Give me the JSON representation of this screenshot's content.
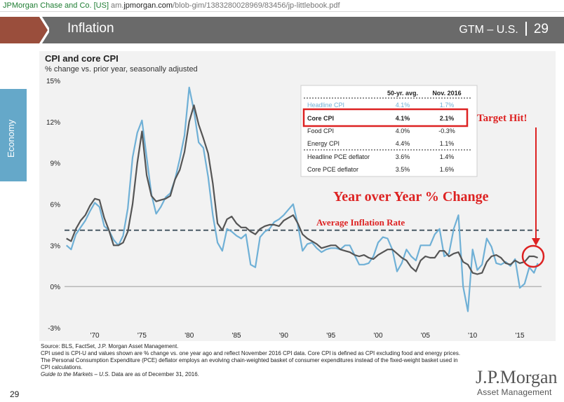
{
  "browser": {
    "site": "JPMorgan Chase and Co. [US]",
    "url_prefix": "am.",
    "url_domain": "jpmorgan.com",
    "url_path": "/blob-gim/1383280028969/83456/jp-littlebook.pdf"
  },
  "header": {
    "title": "Inflation",
    "section": "GTM – U.S.",
    "page": "29"
  },
  "side_tab": "Economy",
  "chart_title": "CPI and core CPI",
  "chart_subtitle": "% change vs. prior year, seasonally adjusted",
  "table": {
    "col1": "50-yr. avg.",
    "col2": "Nov. 2016",
    "rows": [
      {
        "label": "Headline CPI",
        "avg": "4.1%",
        "nov": "1.7%"
      },
      {
        "label": "Core CPI",
        "avg": "4.1%",
        "nov": "2.1%"
      },
      {
        "label": "Food CPI",
        "avg": "4.0%",
        "nov": "-0.3%"
      },
      {
        "label": "Energy CPI",
        "avg": "4.4%",
        "nov": "1.1%"
      },
      {
        "label": "Headline PCE deflator",
        "avg": "3.6%",
        "nov": "1.4%"
      },
      {
        "label": "Core PCE deflator",
        "avg": "3.5%",
        "nov": "1.6%"
      }
    ]
  },
  "annotations": {
    "target_hit": "Target Hit!",
    "yoy": "Year over Year % Change",
    "avg_rate": "Average Inflation  Rate"
  },
  "footnotes": {
    "source": "Source: BLS, FactSet, J.P. Morgan Asset Management.",
    "note": "CPI used is CPI-U and values shown are % change vs. one year ago and reflect November 2016 CPI data. Core CPI is defined as CPI excluding food and energy prices. The Personal Consumption Expenditure (PCE) deflator employs an evolving chain-weighted basket of consumer expenditures instead of the fixed-weight basket used in CPI calculations.",
    "guide_italic": "Guide to the Markets – U.S.",
    "guide_rest": " Data are as of December 31, 2016."
  },
  "page_number": "29",
  "logo": {
    "name": "J.P.Morgan",
    "sub": "Asset Management"
  },
  "colors": {
    "headline": "#6fb0d6",
    "core": "#555555",
    "annotation_red": "#dd2222",
    "average_line": "#4a5a66"
  },
  "chart_data": {
    "type": "line",
    "title": "CPI and core CPI",
    "subtitle": "% change vs. prior year, seasonally adjusted",
    "ylim": [
      -3,
      15
    ],
    "yticks": [
      "15%",
      "12%",
      "9%",
      "6%",
      "3%",
      "0%",
      "-3%"
    ],
    "xticks": [
      "'70",
      "'75",
      "'80",
      "'85",
      "'90",
      "'95",
      "'00",
      "'05",
      "'10",
      "'15"
    ],
    "xlim": [
      1966.8,
      2017.3
    ],
    "average": 4.1,
    "series": [
      {
        "name": "Headline CPI",
        "x": [
          1967.0,
          1967.5,
          1968.0,
          1968.5,
          1969.0,
          1969.5,
          1970.0,
          1970.5,
          1971.0,
          1971.5,
          1972.0,
          1972.5,
          1973.0,
          1973.5,
          1974.0,
          1974.5,
          1975.0,
          1975.5,
          1976.0,
          1976.5,
          1977.0,
          1977.5,
          1978.0,
          1978.5,
          1979.0,
          1979.5,
          1980.0,
          1980.5,
          1981.0,
          1981.5,
          1982.0,
          1982.5,
          1983.0,
          1983.5,
          1984.0,
          1984.5,
          1985.0,
          1985.5,
          1986.0,
          1986.5,
          1987.0,
          1987.5,
          1988.0,
          1988.5,
          1989.0,
          1989.5,
          1990.0,
          1990.5,
          1991.0,
          1991.5,
          1992.0,
          1992.5,
          1993.0,
          1993.5,
          1994.0,
          1994.5,
          1995.0,
          1995.5,
          1996.0,
          1996.5,
          1997.0,
          1997.5,
          1998.0,
          1998.5,
          1999.0,
          1999.5,
          2000.0,
          2000.5,
          2001.0,
          2001.5,
          2002.0,
          2002.5,
          2003.0,
          2003.5,
          2004.0,
          2004.5,
          2005.0,
          2005.5,
          2006.0,
          2006.5,
          2007.0,
          2007.5,
          2008.0,
          2008.5,
          2009.0,
          2009.5,
          2010.0,
          2010.5,
          2011.0,
          2011.5,
          2012.0,
          2012.5,
          2013.0,
          2013.5,
          2014.0,
          2014.5,
          2015.0,
          2015.5,
          2016.0,
          2016.5,
          2016.9
        ],
        "values": [
          3.0,
          2.7,
          3.8,
          4.3,
          4.8,
          5.5,
          6.1,
          5.8,
          4.4,
          4.1,
          3.4,
          3.0,
          3.7,
          5.7,
          9.4,
          11.2,
          12.1,
          9.4,
          6.7,
          5.3,
          5.8,
          6.5,
          6.8,
          7.8,
          9.3,
          11.0,
          14.5,
          12.8,
          10.5,
          10.1,
          8.0,
          5.2,
          3.2,
          2.6,
          4.2,
          4.0,
          3.7,
          3.5,
          3.8,
          1.6,
          1.4,
          3.6,
          4.0,
          4.2,
          4.7,
          4.9,
          5.2,
          5.6,
          6.0,
          4.5,
          2.6,
          3.1,
          3.2,
          2.8,
          2.5,
          2.7,
          2.8,
          2.8,
          2.7,
          3.0,
          3.0,
          2.3,
          1.6,
          1.6,
          1.7,
          2.2,
          3.2,
          3.6,
          3.5,
          2.7,
          1.1,
          1.7,
          2.7,
          2.2,
          1.9,
          3.0,
          3.0,
          3.0,
          3.8,
          4.2,
          2.2,
          2.4,
          4.2,
          5.2,
          0.0,
          -1.8,
          2.7,
          1.2,
          1.6,
          3.5,
          2.9,
          1.7,
          1.6,
          1.8,
          1.5,
          2.0,
          -0.1,
          0.2,
          1.4,
          1.0,
          1.7
        ]
      },
      {
        "name": "Core CPI",
        "x": [
          1967.0,
          1967.5,
          1968.0,
          1968.5,
          1969.0,
          1969.5,
          1970.0,
          1970.5,
          1971.0,
          1971.5,
          1972.0,
          1972.5,
          1973.0,
          1973.5,
          1974.0,
          1974.5,
          1975.0,
          1975.5,
          1976.0,
          1976.5,
          1977.0,
          1977.5,
          1978.0,
          1978.5,
          1979.0,
          1979.5,
          1980.0,
          1980.5,
          1981.0,
          1981.5,
          1982.0,
          1982.5,
          1983.0,
          1983.5,
          1984.0,
          1984.5,
          1985.0,
          1985.5,
          1986.0,
          1986.5,
          1987.0,
          1987.5,
          1988.0,
          1988.5,
          1989.0,
          1989.5,
          1990.0,
          1990.5,
          1991.0,
          1991.5,
          1992.0,
          1992.5,
          1993.0,
          1993.5,
          1994.0,
          1994.5,
          1995.0,
          1995.5,
          1996.0,
          1996.5,
          1997.0,
          1997.5,
          1998.0,
          1998.5,
          1999.0,
          1999.5,
          2000.0,
          2000.5,
          2001.0,
          2001.5,
          2002.0,
          2002.5,
          2003.0,
          2003.5,
          2004.0,
          2004.5,
          2005.0,
          2005.5,
          2006.0,
          2006.5,
          2007.0,
          2007.5,
          2008.0,
          2008.5,
          2009.0,
          2009.5,
          2010.0,
          2010.5,
          2011.0,
          2011.5,
          2012.0,
          2012.5,
          2013.0,
          2013.5,
          2014.0,
          2014.5,
          2015.0,
          2015.5,
          2016.0,
          2016.5,
          2016.9
        ],
        "values": [
          3.5,
          3.3,
          4.2,
          4.8,
          5.2,
          5.9,
          6.4,
          6.3,
          5.0,
          4.1,
          3.0,
          3.0,
          3.2,
          4.0,
          6.0,
          9.0,
          11.3,
          8.1,
          6.6,
          6.2,
          6.3,
          6.4,
          6.6,
          7.8,
          8.5,
          9.8,
          12.0,
          13.2,
          11.8,
          10.8,
          9.7,
          7.5,
          4.6,
          4.1,
          4.9,
          5.1,
          4.6,
          4.3,
          4.3,
          4.0,
          3.8,
          4.2,
          4.4,
          4.5,
          4.5,
          4.4,
          4.8,
          5.0,
          5.2,
          4.6,
          3.8,
          3.5,
          3.3,
          3.1,
          2.8,
          2.9,
          3.0,
          3.0,
          2.7,
          2.6,
          2.5,
          2.3,
          2.2,
          2.3,
          2.1,
          2.0,
          2.3,
          2.5,
          2.7,
          2.7,
          2.4,
          2.1,
          1.9,
          1.4,
          1.1,
          1.9,
          2.2,
          2.1,
          2.1,
          2.6,
          2.6,
          2.2,
          2.4,
          2.5,
          1.8,
          1.6,
          1.0,
          0.9,
          1.0,
          1.8,
          2.2,
          2.3,
          2.1,
          1.7,
          1.6,
          1.9,
          1.7,
          1.8,
          2.2,
          2.2,
          2.1
        ]
      }
    ]
  }
}
